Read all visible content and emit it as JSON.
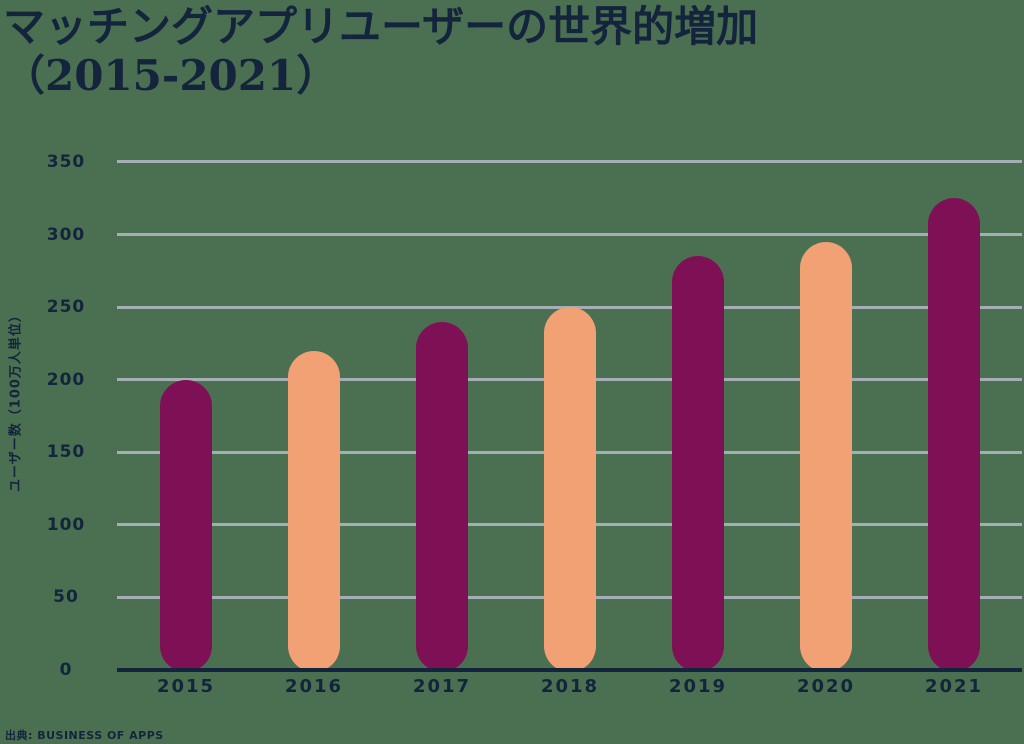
{
  "title": {
    "line1": "マッチングアプリユーザーの世界的増加",
    "line2": "（2015-2021）"
  },
  "source": "出典: BUSINESS OF APPS",
  "colors": {
    "background": "#4B7051",
    "bar_dark": "#7E1156",
    "bar_light": "#F2A175",
    "text": "#15243D",
    "gridline": "#A4AEB4",
    "axis_line": "#15243D"
  },
  "chart_data": {
    "type": "bar",
    "title": "マッチングアプリユーザーの世界的増加（2015-2021）",
    "categories": [
      "2015",
      "2016",
      "2017",
      "2018",
      "2019",
      "2020",
      "2021"
    ],
    "values": [
      200,
      220,
      240,
      250,
      285,
      295,
      325
    ],
    "series": [
      {
        "name": "ユーザー数",
        "values": [
          200,
          220,
          240,
          250,
          285,
          295,
          325
        ]
      }
    ],
    "xlabel": "",
    "ylabel": "ユーザー数（100万人単位）",
    "ylim": [
      0,
      350
    ],
    "yticks": [
      0,
      50,
      100,
      150,
      200,
      250,
      300,
      350
    ],
    "grid": true,
    "legend": "none",
    "bar_color_pattern": "alternating",
    "bar_colors": [
      "#7E1156",
      "#F2A175"
    ]
  }
}
